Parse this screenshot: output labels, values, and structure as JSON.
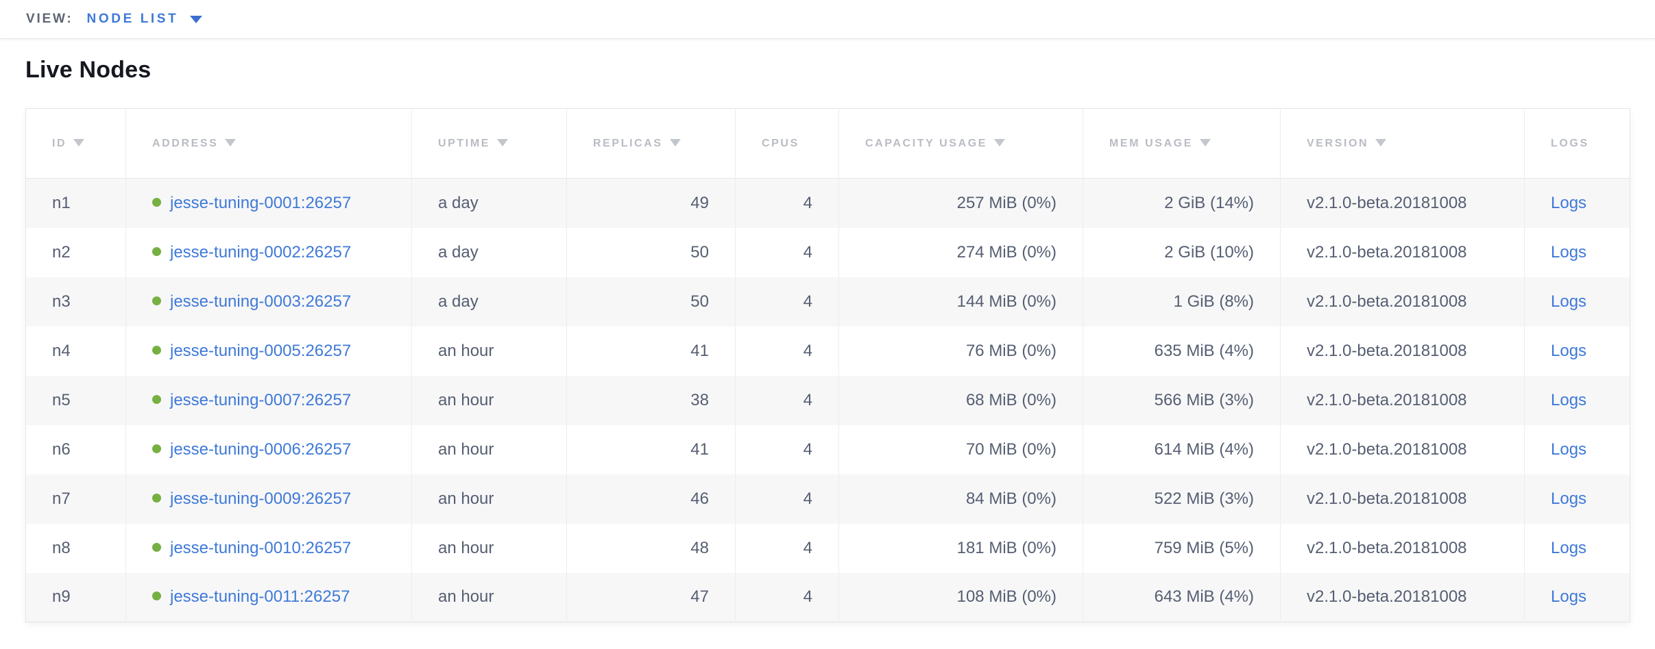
{
  "view_bar": {
    "label": "VIEW:",
    "selected": "NODE LIST"
  },
  "page": {
    "title": "Live Nodes"
  },
  "colors": {
    "link": "#3e79d8",
    "live_dot": "#76b042",
    "cell_text": "#555e71",
    "header_text": "#b9bcc3",
    "stripe": "#f7f7f8"
  },
  "table": {
    "columns": [
      {
        "key": "id",
        "label": "ID",
        "sortable": true,
        "align": "left"
      },
      {
        "key": "address",
        "label": "ADDRESS",
        "sortable": true,
        "align": "left"
      },
      {
        "key": "uptime",
        "label": "UPTIME",
        "sortable": true,
        "align": "left"
      },
      {
        "key": "replicas",
        "label": "REPLICAS",
        "sortable": true,
        "align": "right"
      },
      {
        "key": "cpus",
        "label": "CPUS",
        "sortable": false,
        "align": "right"
      },
      {
        "key": "capacity",
        "label": "CAPACITY USAGE",
        "sortable": true,
        "align": "right"
      },
      {
        "key": "mem",
        "label": "MEM USAGE",
        "sortable": true,
        "align": "right"
      },
      {
        "key": "version",
        "label": "VERSION",
        "sortable": true,
        "align": "left"
      },
      {
        "key": "logs",
        "label": "LOGS",
        "sortable": false,
        "align": "left"
      }
    ],
    "rows": [
      {
        "id": "n1",
        "address": "jesse-tuning-0001:26257",
        "status": "live",
        "uptime": "a day",
        "replicas": "49",
        "cpus": "4",
        "capacity": "257 MiB (0%)",
        "mem": "2 GiB (14%)",
        "version": "v2.1.0-beta.20181008",
        "logs": "Logs"
      },
      {
        "id": "n2",
        "address": "jesse-tuning-0002:26257",
        "status": "live",
        "uptime": "a day",
        "replicas": "50",
        "cpus": "4",
        "capacity": "274 MiB (0%)",
        "mem": "2 GiB (10%)",
        "version": "v2.1.0-beta.20181008",
        "logs": "Logs"
      },
      {
        "id": "n3",
        "address": "jesse-tuning-0003:26257",
        "status": "live",
        "uptime": "a day",
        "replicas": "50",
        "cpus": "4",
        "capacity": "144 MiB (0%)",
        "mem": "1 GiB (8%)",
        "version": "v2.1.0-beta.20181008",
        "logs": "Logs"
      },
      {
        "id": "n4",
        "address": "jesse-tuning-0005:26257",
        "status": "live",
        "uptime": "an hour",
        "replicas": "41",
        "cpus": "4",
        "capacity": "76 MiB (0%)",
        "mem": "635 MiB (4%)",
        "version": "v2.1.0-beta.20181008",
        "logs": "Logs"
      },
      {
        "id": "n5",
        "address": "jesse-tuning-0007:26257",
        "status": "live",
        "uptime": "an hour",
        "replicas": "38",
        "cpus": "4",
        "capacity": "68 MiB (0%)",
        "mem": "566 MiB (3%)",
        "version": "v2.1.0-beta.20181008",
        "logs": "Logs"
      },
      {
        "id": "n6",
        "address": "jesse-tuning-0006:26257",
        "status": "live",
        "uptime": "an hour",
        "replicas": "41",
        "cpus": "4",
        "capacity": "70 MiB (0%)",
        "mem": "614 MiB (4%)",
        "version": "v2.1.0-beta.20181008",
        "logs": "Logs"
      },
      {
        "id": "n7",
        "address": "jesse-tuning-0009:26257",
        "status": "live",
        "uptime": "an hour",
        "replicas": "46",
        "cpus": "4",
        "capacity": "84 MiB (0%)",
        "mem": "522 MiB (3%)",
        "version": "v2.1.0-beta.20181008",
        "logs": "Logs"
      },
      {
        "id": "n8",
        "address": "jesse-tuning-0010:26257",
        "status": "live",
        "uptime": "an hour",
        "replicas": "48",
        "cpus": "4",
        "capacity": "181 MiB (0%)",
        "mem": "759 MiB (5%)",
        "version": "v2.1.0-beta.20181008",
        "logs": "Logs"
      },
      {
        "id": "n9",
        "address": "jesse-tuning-0011:26257",
        "status": "live",
        "uptime": "an hour",
        "replicas": "47",
        "cpus": "4",
        "capacity": "108 MiB (0%)",
        "mem": "643 MiB (4%)",
        "version": "v2.1.0-beta.20181008",
        "logs": "Logs"
      }
    ]
  }
}
